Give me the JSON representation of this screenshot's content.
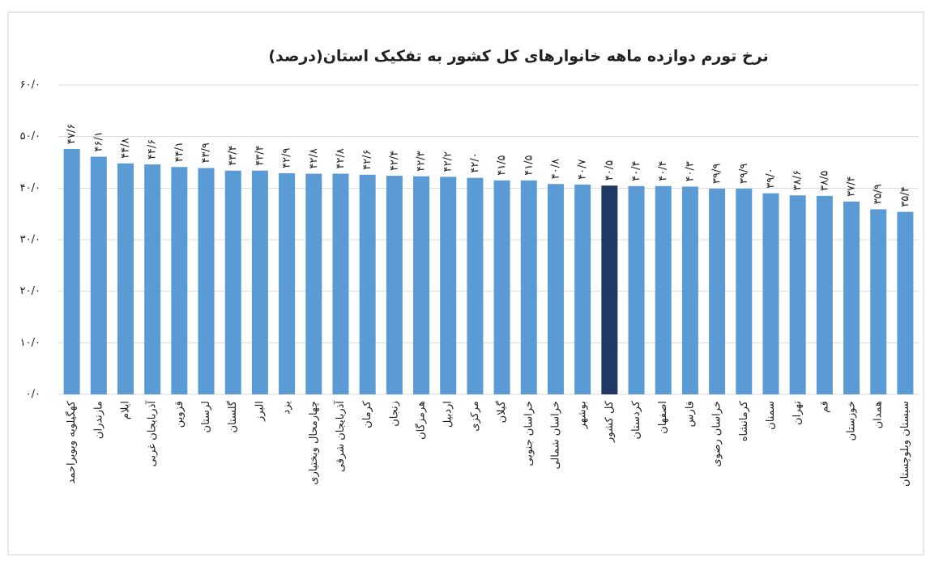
{
  "chart_data": {
    "type": "bar",
    "title": "نرخ تورم دوازده ماهه خانوارهای کل کشور به تفکیک استان(درصد)",
    "categories": [
      "کهگیلویه وبویراحمد",
      "مازندران",
      "ایلام",
      "آذربایجان غربی",
      "قزوین",
      "لرستان",
      "گلستان",
      "البرز",
      "یزد",
      "چهارمحال وبختیاری",
      "آذربایجان شرقی",
      "کرمان",
      "زنجان",
      "هرمزگان",
      "اردبیل",
      "مرکزی",
      "گیلان",
      "خراسان جنوبی",
      "خراسان شمالی",
      "بوشهر",
      "کل کشور",
      "کردستان",
      "اصفهان",
      "فارس",
      "خراسان رضوی",
      "کرمانشاه",
      "سمنان",
      "تهران",
      "قم",
      "خوزستان",
      "همدان",
      "سیستان وبلوچستان"
    ],
    "values": [
      47.6,
      46.1,
      44.8,
      44.6,
      44.1,
      43.9,
      43.4,
      43.4,
      42.9,
      42.8,
      42.8,
      42.6,
      42.4,
      42.3,
      42.2,
      42.0,
      41.5,
      41.5,
      40.8,
      40.7,
      40.5,
      40.4,
      40.4,
      40.3,
      39.9,
      39.9,
      39.0,
      38.6,
      38.5,
      37.4,
      35.9,
      35.4
    ],
    "value_labels": [
      "۴۷/۶",
      "۴۶/۱",
      "۴۴/۸",
      "۴۴/۶",
      "۴۴/۱",
      "۴۳/۹",
      "۴۳/۴",
      "۴۳/۴",
      "۴۲/۹",
      "۴۲/۸",
      "۴۲/۸",
      "۴۲/۶",
      "۴۲/۴",
      "۴۲/۳",
      "۴۲/۲",
      "۴۲/۰",
      "۴۱/۵",
      "۴۱/۵",
      "۴۰/۸",
      "۴۰/۷",
      "۴۰/۵",
      "۴۰/۴",
      "۴۰/۴",
      "۴۰/۳",
      "۳۹/۹",
      "۳۹/۹",
      "۳۹/۰",
      "۳۸/۶",
      "۳۸/۵",
      "۳۷/۴",
      "۳۵/۹",
      "۳۵/۴"
    ],
    "colors": [
      "#5b9bd5",
      "#5b9bd5",
      "#5b9bd5",
      "#5b9bd5",
      "#5b9bd5",
      "#5b9bd5",
      "#5b9bd5",
      "#5b9bd5",
      "#5b9bd5",
      "#5b9bd5",
      "#5b9bd5",
      "#5b9bd5",
      "#5b9bd5",
      "#5b9bd5",
      "#5b9bd5",
      "#5b9bd5",
      "#5b9bd5",
      "#5b9bd5",
      "#5b9bd5",
      "#5b9bd5",
      "#1f3864",
      "#5b9bd5",
      "#5b9bd5",
      "#5b9bd5",
      "#5b9bd5",
      "#5b9bd5",
      "#5b9bd5",
      "#5b9bd5",
      "#5b9bd5",
      "#5b9bd5",
      "#5b9bd5",
      "#5b9bd5"
    ],
    "ylim": [
      0,
      60
    ],
    "yticks": [
      {
        "value": 0,
        "label": "۰/۰"
      },
      {
        "value": 10,
        "label": "۱۰/۰"
      },
      {
        "value": 20,
        "label": "۲۰/۰"
      },
      {
        "value": 30,
        "label": "۳۰/۰"
      },
      {
        "value": 40,
        "label": "۴۰/۰"
      },
      {
        "value": 50,
        "label": "۵۰/۰"
      },
      {
        "value": 60,
        "label": "۶۰/۰"
      }
    ],
    "grid": true
  }
}
